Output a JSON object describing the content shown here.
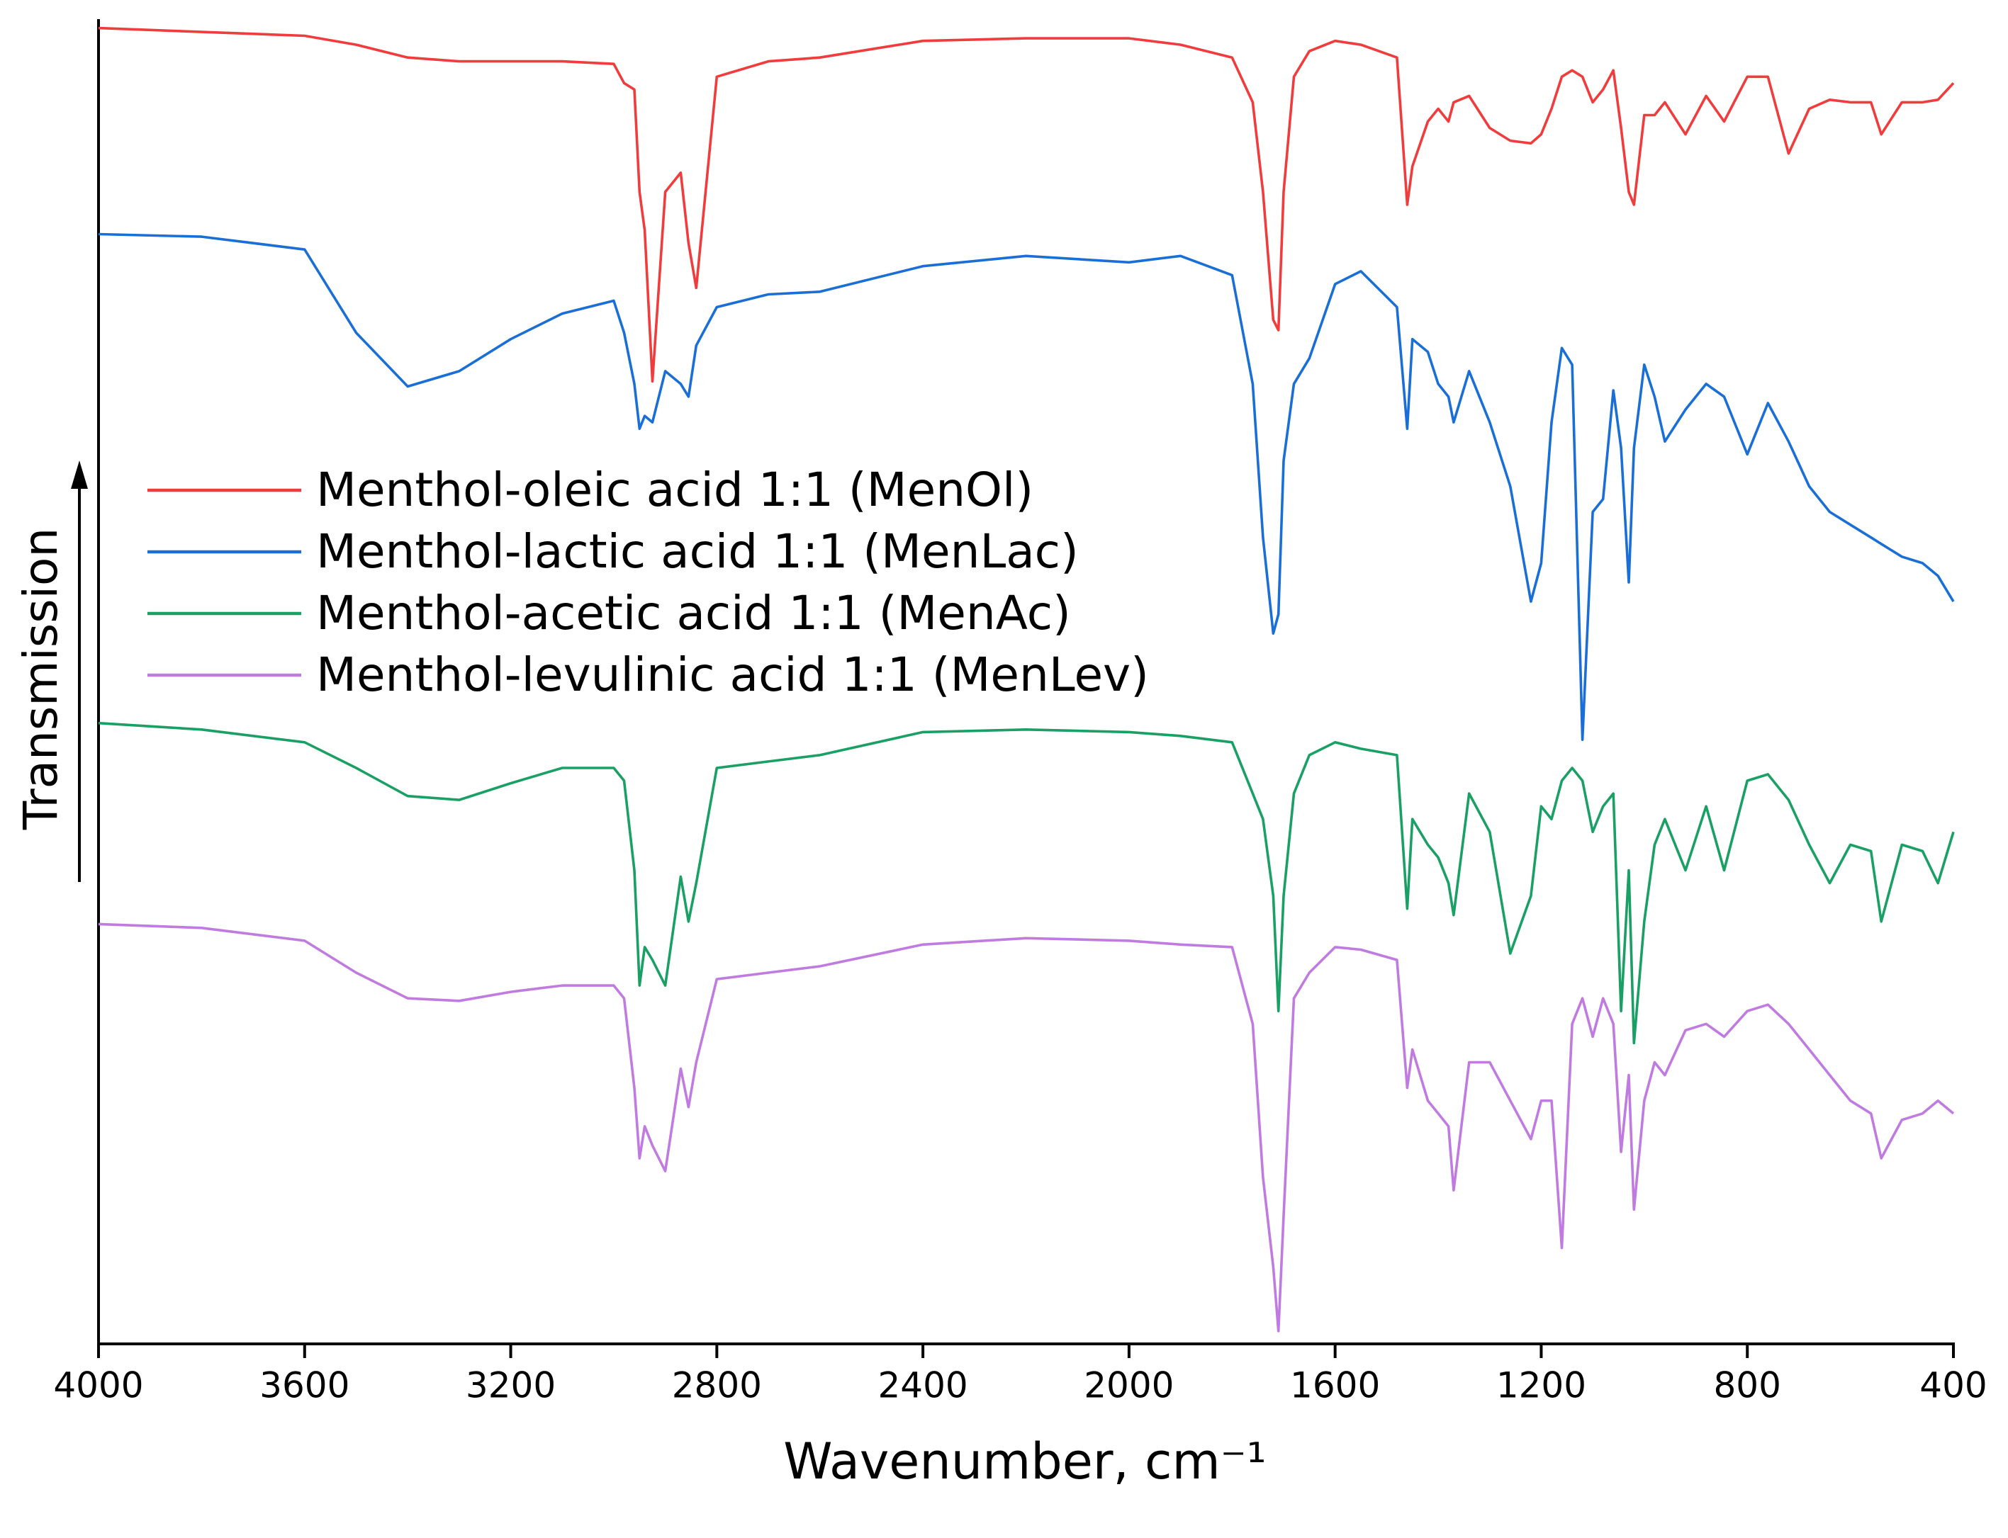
{
  "chart_data": {
    "type": "line",
    "xlabel": "Wavenumber, cm⁻¹",
    "ylabel": "Transmission",
    "xlim": [
      4000,
      400
    ],
    "xticks": [
      4000,
      3600,
      3200,
      2800,
      2400,
      2000,
      1600,
      1200,
      800,
      400
    ],
    "ylim": [
      0,
      103.5
    ],
    "legend": "center left",
    "x": [
      4000,
      3800,
      3600,
      3500,
      3400,
      3300,
      3200,
      3100,
      3000,
      2980,
      2960,
      2950,
      2940,
      2925,
      2900,
      2870,
      2855,
      2840,
      2800,
      2700,
      2600,
      2400,
      2200,
      2000,
      1900,
      1800,
      1760,
      1740,
      1720,
      1710,
      1700,
      1680,
      1650,
      1600,
      1550,
      1480,
      1460,
      1450,
      1420,
      1400,
      1380,
      1370,
      1340,
      1300,
      1260,
      1220,
      1200,
      1180,
      1160,
      1140,
      1120,
      1100,
      1080,
      1060,
      1045,
      1030,
      1020,
      1000,
      980,
      960,
      920,
      880,
      845,
      800,
      760,
      720,
      680,
      640,
      600,
      560,
      540,
      500,
      460,
      430,
      400
    ],
    "series": [
      {
        "name": "Menthol-oleic acid 1:1 (MenOl)",
        "color": "#f03c3c",
        "values": [
          102.8,
          102.5,
          102.2,
          101.5,
          100.5,
          100.2,
          100.2,
          100.2,
          100,
          98.5,
          98,
          90,
          87,
          75.2,
          90,
          91.5,
          86,
          82.5,
          99,
          100.2,
          100.5,
          101.8,
          102,
          102,
          101.5,
          100.5,
          97,
          90,
          80,
          79.2,
          90,
          99,
          101,
          101.8,
          101.5,
          100.5,
          89,
          92,
          95.5,
          96.5,
          95.5,
          97,
          97.5,
          95,
          94,
          93.8,
          94.5,
          96.5,
          99,
          99.5,
          99,
          97,
          98,
          99.5,
          95,
          90,
          89,
          96,
          96,
          97,
          94.5,
          97.5,
          95.5,
          99,
          99,
          93,
          96.5,
          97.2,
          97,
          97,
          94.5,
          97,
          97,
          97.2,
          98.5
        ]
      },
      {
        "name": "Menthol-lactic acid 1:1 (MenLac)",
        "color": "#1a6fd6",
        "values": [
          86.7,
          86.5,
          85.5,
          79,
          74.8,
          76,
          78.5,
          80.5,
          81.5,
          79,
          75,
          71.5,
          72.5,
          72,
          76,
          75,
          74,
          78,
          81,
          82,
          82.2,
          84.2,
          85,
          84.5,
          85,
          83.5,
          75,
          63,
          55.5,
          57,
          69,
          75,
          77,
          82.8,
          83.8,
          81,
          71.5,
          78.5,
          77.5,
          75,
          74,
          72,
          76,
          72,
          67,
          58,
          61,
          72,
          77.8,
          76.5,
          47.2,
          65,
          66,
          74.5,
          70,
          59.5,
          70,
          76.5,
          74,
          70.5,
          73,
          75,
          74,
          69.5,
          73.5,
          70.5,
          67,
          65,
          64,
          63,
          62.5,
          61.5,
          61,
          60,
          58
        ]
      },
      {
        "name": "Menthol-acetic acid 1:1 (MenAc)",
        "color": "#1aa065",
        "values": [
          48.5,
          48,
          47,
          45,
          42.8,
          42.5,
          43.8,
          45,
          45,
          44,
          37,
          28,
          31,
          30,
          28,
          36.5,
          33,
          36,
          45,
          45.5,
          46,
          47.8,
          48,
          47.8,
          47.5,
          47,
          43,
          41,
          35,
          26,
          35,
          43,
          46,
          47,
          46.5,
          46,
          34,
          41,
          39,
          38,
          36,
          33.5,
          43,
          40,
          30.5,
          35,
          42,
          41,
          44,
          45,
          44,
          40,
          42,
          43,
          26,
          37,
          23.5,
          33,
          39,
          41,
          37,
          42,
          37,
          44,
          44.5,
          42.5,
          39,
          36,
          39,
          38.5,
          33,
          39,
          38.5,
          36,
          40
        ]
      },
      {
        "name": "Menthol-levulinic acid 1:1 (MenLev)",
        "color": "#c07be0",
        "values": [
          32.8,
          32.5,
          31.5,
          29,
          27,
          26.8,
          27.5,
          28,
          28,
          27,
          20,
          14.5,
          17,
          15.5,
          13.5,
          21.5,
          18.5,
          22,
          28.5,
          29,
          29.5,
          31.2,
          31.7,
          31.5,
          31.2,
          31,
          25,
          13,
          6,
          1,
          10,
          27,
          29,
          31,
          30.8,
          30,
          20,
          23,
          19,
          18,
          17,
          12,
          22,
          22,
          19,
          16,
          19,
          19,
          7.5,
          25,
          27,
          24,
          27,
          25,
          15,
          21,
          10.5,
          19,
          22,
          21,
          24.5,
          25,
          24,
          26,
          26.5,
          25,
          23,
          21,
          19,
          18,
          14.5,
          17.5,
          18,
          19,
          18
        ]
      }
    ]
  }
}
